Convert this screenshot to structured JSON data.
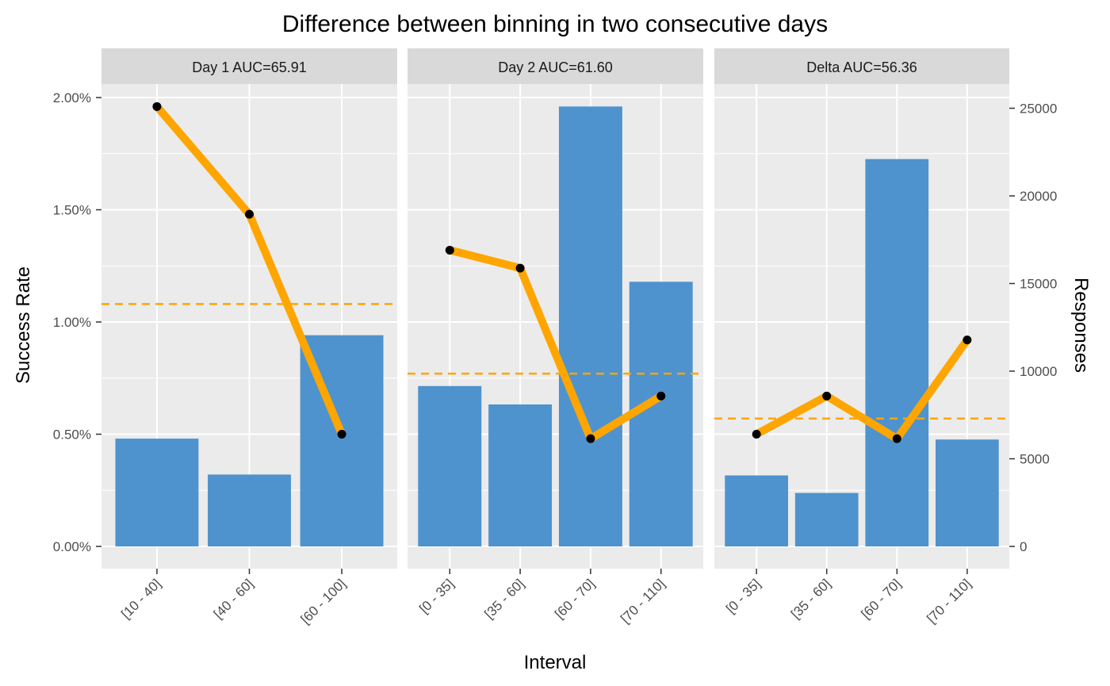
{
  "chart_data": {
    "type": "bar",
    "title": "Difference between binning in two consecutive days",
    "xlabel": "Interval",
    "ylabel": "Success Rate",
    "ylabel_right": "Responses",
    "ylim_left": [
      0,
      0.02
    ],
    "left_ticks": [
      0,
      0.005,
      0.01,
      0.015,
      0.02
    ],
    "left_tick_labels": [
      "0.00%",
      "0.50%",
      "1.00%",
      "1.50%",
      "2.00%"
    ],
    "ylim_right": [
      0,
      25000
    ],
    "right_ticks": [
      0,
      5000,
      10000,
      15000,
      20000,
      25000
    ],
    "right_tick_labels": [
      "0",
      "5000",
      "10000",
      "15000",
      "20000",
      "25000"
    ],
    "colors": {
      "bar": "#4e93cd",
      "line": "#ffa500",
      "point": "#000000",
      "panel": "#ebebeb",
      "strip": "#d9d9d9",
      "grid": "#ffffff"
    },
    "grid": true,
    "panels": [
      {
        "label": "Day 1 AUC=65.91",
        "categories": [
          "[10 - 40]",
          "[40 - 60]",
          "[60 - 100]"
        ],
        "responses": [
          6150,
          4100,
          12050
        ],
        "success_rate": [
          0.0196,
          0.0148,
          0.005
        ],
        "mean_success_rate": 0.0108
      },
      {
        "label": "Day 2 AUC=61.60",
        "categories": [
          "[0 - 35]",
          "[35 - 60]",
          "[60 - 70]",
          "[70 - 110]"
        ],
        "responses": [
          9150,
          8100,
          25100,
          15100
        ],
        "success_rate": [
          0.0132,
          0.0124,
          0.0048,
          0.0067
        ],
        "mean_success_rate": 0.0077
      },
      {
        "label": "Delta AUC=56.36",
        "categories": [
          "[0 - 35]",
          "[35 - 60]",
          "[60 - 70]",
          "[70 - 110]"
        ],
        "responses": [
          4050,
          3050,
          22100,
          6100
        ],
        "success_rate": [
          0.005,
          0.0067,
          0.0048,
          0.0092
        ],
        "mean_success_rate": 0.0057
      }
    ]
  }
}
